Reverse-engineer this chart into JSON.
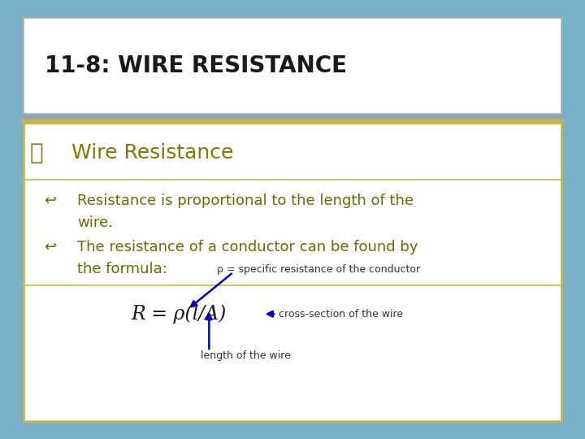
{
  "title": "11-8: WIRE RESISTANCE",
  "title_color": "#1a1a1a",
  "title_bg": "#ffffff",
  "title_border": "#b0b0b0",
  "body_bg": "#ffffff",
  "body_border": "#c8b840",
  "sep_color_gray": "#a0a0a0",
  "sep_color_gold": "#c8b840",
  "outer_bg_top": "#b0b8c0",
  "outer_bg_bottom": "#7ab0c8",
  "bullet1_color": "#8b7500",
  "sub_text_color": "#6b6b00",
  "annotation_color": "#333333",
  "formula_color": "#1a1a1a",
  "arrow_color": "#0000cc",
  "bullet1_symbol": "⎂",
  "bullet1_text": "Wire Resistance",
  "sub1_line1": "Resistance is proportional to the length of the",
  "sub1_line2": "wire.",
  "sub2_line1": "The resistance of a conductor can be found by",
  "sub2_line2": "the formula:",
  "rho_label": "ρ = specific resistance of the conductor",
  "formula": "R = ρ(l/A)",
  "cross_section_label": "cross-section of the wire",
  "length_label": "length of the wire"
}
